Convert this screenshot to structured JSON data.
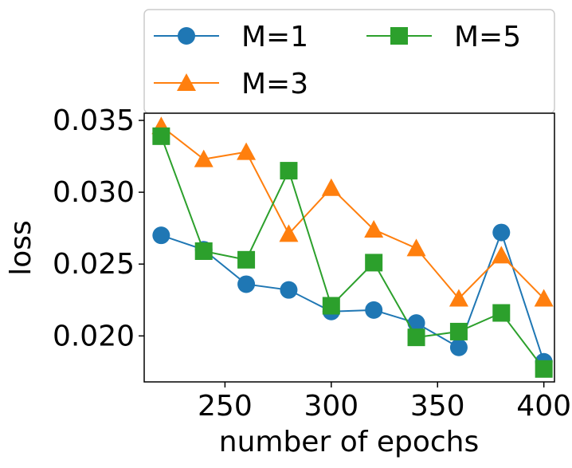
{
  "chart_data": {
    "type": "line",
    "xlabel": "number of epochs",
    "ylabel": "loss",
    "xlim": [
      212,
      405
    ],
    "ylim": [
      0.0168,
      0.0355
    ],
    "xticks": [
      250,
      300,
      350,
      400
    ],
    "xtick_labels": [
      "250",
      "300",
      "350",
      "400"
    ],
    "yticks": [
      0.02,
      0.025,
      0.03,
      0.035
    ],
    "ytick_labels": [
      "0.020",
      "0.025",
      "0.030",
      "0.035"
    ],
    "grid": false,
    "legend_position": "top, outside plot",
    "x": [
      220,
      240,
      260,
      280,
      300,
      320,
      340,
      360,
      380,
      400
    ],
    "series": [
      {
        "name": "M=1",
        "marker": "circle",
        "color": "#1f77b4",
        "values": [
          0.027,
          0.026,
          0.0236,
          0.0232,
          0.0217,
          0.0218,
          0.0209,
          0.0192,
          0.0272,
          0.0182
        ]
      },
      {
        "name": "M=3",
        "marker": "triangle",
        "color": "#ff7f0e",
        "values": [
          0.0346,
          0.0323,
          0.0328,
          0.0271,
          0.0303,
          0.0274,
          0.0261,
          0.0226,
          0.0256,
          0.0226
        ]
      },
      {
        "name": "M=5",
        "marker": "square",
        "color": "#2ca02c",
        "values": [
          0.0339,
          0.0259,
          0.0253,
          0.0315,
          0.0221,
          0.0251,
          0.0199,
          0.0203,
          0.0216,
          0.0177
        ]
      }
    ]
  }
}
